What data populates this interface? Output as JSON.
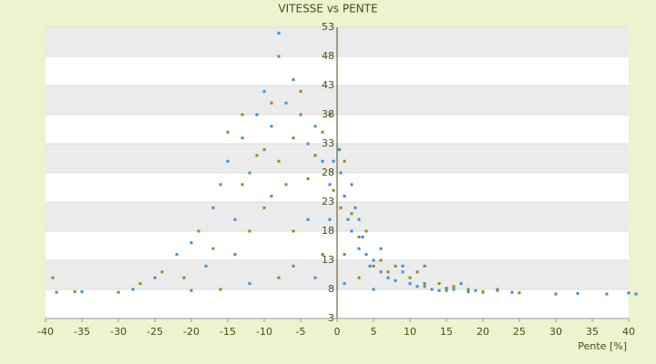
{
  "chart_data": {
    "type": "scatter",
    "title": "VITESSE vs PENTE",
    "x_label": "Pente [%]",
    "xlim": [
      -40,
      40
    ],
    "xticks": [
      -40,
      -35,
      -30,
      -25,
      -20,
      -15,
      -10,
      -5,
      0,
      5,
      10,
      15,
      20,
      25,
      30,
      35,
      40
    ],
    "ylim": [
      3,
      53
    ],
    "yticks": [
      3,
      8,
      13,
      18,
      23,
      28,
      33,
      38,
      43,
      48,
      53
    ],
    "grid": true,
    "series": [
      {
        "color": "#3b8fd6",
        "x": [
          -38.5,
          -35,
          -28,
          -25,
          -22,
          -20,
          -18,
          -17,
          -16,
          -15,
          -14,
          -13,
          -12,
          -11,
          -10,
          -9,
          -8,
          -8,
          -7,
          -6,
          -5,
          -4,
          -3,
          -2,
          -1,
          -1,
          -0.5,
          0.5,
          1,
          1.5,
          2,
          2.5,
          3,
          3.5,
          4,
          4.5,
          5,
          6,
          7,
          8,
          9,
          10,
          11,
          12,
          13,
          14,
          15,
          16,
          18,
          19,
          20,
          22,
          24,
          30,
          33,
          37,
          40,
          41,
          -6,
          -12,
          -20,
          -3,
          -9,
          -14,
          -4,
          0.3,
          2,
          3,
          6,
          9,
          1,
          5,
          17,
          12
        ],
        "y": [
          7.5,
          7.6,
          8,
          10,
          14,
          16,
          12,
          22,
          26,
          30,
          20,
          34,
          28,
          38,
          42,
          36,
          48,
          52,
          40,
          44,
          38,
          33,
          36,
          30,
          26,
          20,
          30,
          28,
          24,
          20,
          18,
          22,
          15,
          17,
          14,
          12,
          13,
          11,
          10,
          9.5,
          12,
          9,
          8.5,
          9,
          8,
          7.8,
          8.2,
          8,
          7.6,
          7.8,
          7.5,
          8,
          7.5,
          7.2,
          7.3,
          7.2,
          7.4,
          7.2,
          12,
          9,
          7.8,
          10,
          24,
          14,
          20,
          32,
          26,
          20,
          15,
          11,
          9,
          8,
          9,
          12
        ]
      },
      {
        "color": "#8c8c1e",
        "x": [
          -39,
          -36,
          -30,
          -27,
          -24,
          -21,
          -19,
          -17,
          -15,
          -13,
          -12,
          -11,
          -10,
          -9,
          -8,
          -7,
          -6,
          -5,
          -4,
          -3,
          -2,
          -1,
          -0.5,
          0.5,
          1,
          2,
          3,
          4,
          5,
          6,
          7,
          8,
          10,
          12,
          14,
          16,
          18,
          20,
          22,
          25,
          -16,
          -8,
          -2,
          -10,
          -13,
          -6,
          1,
          3,
          11,
          15
        ],
        "y": [
          10,
          7.6,
          7.5,
          9,
          11,
          10,
          18,
          15,
          35,
          26,
          18,
          31,
          22,
          40,
          30,
          26,
          34,
          42,
          27,
          31,
          35,
          38,
          25,
          22,
          30,
          21,
          17,
          18,
          12,
          13,
          11,
          12,
          10,
          8.5,
          9,
          8.5,
          8,
          7.6,
          7.8,
          7.4,
          8,
          10,
          14,
          32,
          38,
          18,
          14,
          10,
          11,
          7.8
        ]
      }
    ]
  }
}
